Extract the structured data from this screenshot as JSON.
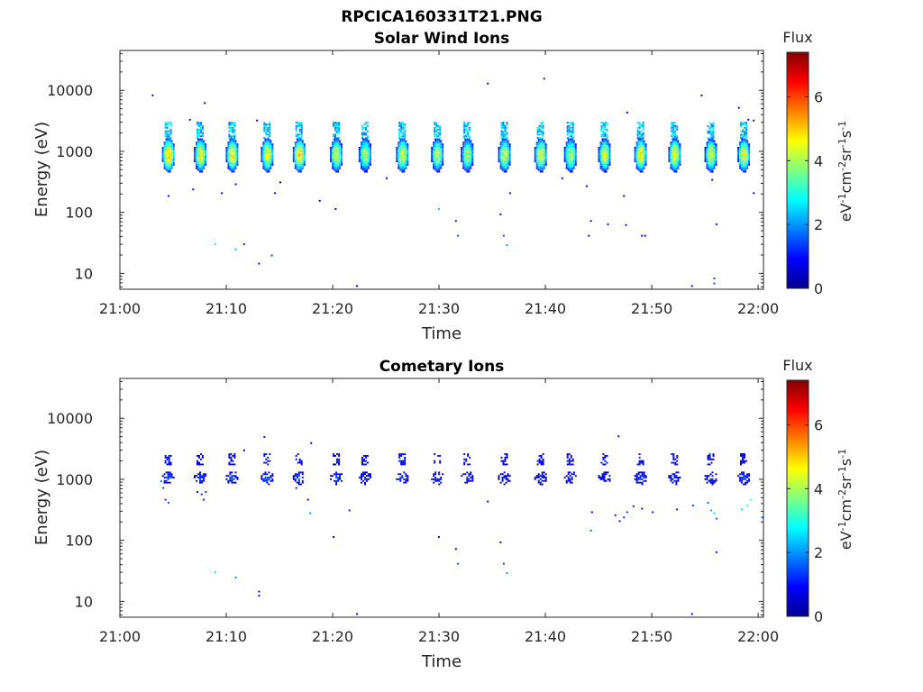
{
  "figure_title": "RPCICA160331T21.PNG",
  "colormap": [
    "#00008f",
    "#0000ff",
    "#0080ff",
    "#00ffff",
    "#80ff80",
    "#ffff00",
    "#ff8000",
    "#ff0000",
    "#800000"
  ],
  "chart_data": [
    {
      "type": "heatmap",
      "title": "Solar Wind Ions",
      "xlabel": "Time",
      "ylabel": "Energy (eV)",
      "x_ticks": [
        "21:00",
        "21:10",
        "21:20",
        "21:30",
        "21:40",
        "21:50",
        "22:00"
      ],
      "xlim_minutes": [
        0,
        60.5
      ],
      "y_scale": "log",
      "ylim": [
        5.5,
        45000
      ],
      "y_ticks": [
        10,
        100,
        1000,
        10000
      ],
      "y_tick_labels": [
        "10",
        "100",
        "1000",
        "10000"
      ],
      "colorbar": {
        "label": "Flux",
        "units": "eV-1cm-2sr-1s-1",
        "range": [
          0,
          7.4
        ],
        "ticks": [
          0,
          2,
          4,
          6
        ],
        "tick_labels": [
          "0",
          "2",
          "4",
          "6"
        ]
      },
      "bursts_minutes": [
        4.5,
        7.5,
        10.5,
        13.8,
        16.8,
        20.3,
        23.0,
        26.5,
        29.8,
        32.6,
        36.1,
        39.5,
        42.3,
        45.5,
        48.9,
        52.1,
        55.5,
        58.6
      ],
      "main_band_energy_eV": [
        450,
        1600
      ],
      "upper_band_energy_eV": [
        1600,
        3000
      ],
      "peak_flux": [
        5.0,
        4.5,
        4.6,
        4.4,
        4.8,
        4.2,
        4.0,
        4.3,
        4.0,
        3.8,
        4.2,
        4.3,
        4.0,
        4.2,
        4.6,
        4.5,
        4.3,
        4.5
      ],
      "scattered_points": [
        {
          "t": 3.0,
          "e": 8000,
          "v": 0.3
        },
        {
          "t": 7.9,
          "e": 6000,
          "v": 0.3
        },
        {
          "t": 6.5,
          "e": 3200,
          "v": 0.5
        },
        {
          "t": 12.8,
          "e": 3100,
          "v": 0.4
        },
        {
          "t": 34.5,
          "e": 12500,
          "v": 0.3
        },
        {
          "t": 39.8,
          "e": 15000,
          "v": 0.8
        },
        {
          "t": 47.6,
          "e": 4200,
          "v": 0.5
        },
        {
          "t": 54.6,
          "e": 8000,
          "v": 0.4
        },
        {
          "t": 58.1,
          "e": 5000,
          "v": 0.4
        },
        {
          "t": 59.0,
          "e": 3200,
          "v": 0.3
        },
        {
          "t": 59.5,
          "e": 3100,
          "v": 0.3
        },
        {
          "t": 4.5,
          "e": 180,
          "v": 0.6
        },
        {
          "t": 6.8,
          "e": 230,
          "v": 0.6
        },
        {
          "t": 9.5,
          "e": 200,
          "v": 0.5
        },
        {
          "t": 10.8,
          "e": 280,
          "v": 0.6
        },
        {
          "t": 15.0,
          "e": 300,
          "v": 0.5
        },
        {
          "t": 14.5,
          "e": 200,
          "v": 0.5
        },
        {
          "t": 18.7,
          "e": 150,
          "v": 0.4
        },
        {
          "t": 20.2,
          "e": 110,
          "v": 0.5
        },
        {
          "t": 25.0,
          "e": 350,
          "v": 0.4
        },
        {
          "t": 36.6,
          "e": 200,
          "v": 0.5
        },
        {
          "t": 41.5,
          "e": 350,
          "v": 0.5
        },
        {
          "t": 43.8,
          "e": 260,
          "v": 0.5
        },
        {
          "t": 44.2,
          "e": 70,
          "v": 0.6
        },
        {
          "t": 45.8,
          "e": 62,
          "v": 0.6
        },
        {
          "t": 47.3,
          "e": 180,
          "v": 0.6
        },
        {
          "t": 47.5,
          "e": 60,
          "v": 0.6
        },
        {
          "t": 55.6,
          "e": 330,
          "v": 0.6
        },
        {
          "t": 56.0,
          "e": 62,
          "v": 0.8
        },
        {
          "t": 59.5,
          "e": 200,
          "v": 0.5
        },
        {
          "t": 29.9,
          "e": 110,
          "v": 2.3
        },
        {
          "t": 31.5,
          "e": 70,
          "v": 0.8
        },
        {
          "t": 31.7,
          "e": 40,
          "v": 1.5
        },
        {
          "t": 35.7,
          "e": 90,
          "v": 0.7
        },
        {
          "t": 36.0,
          "e": 40,
          "v": 1.4
        },
        {
          "t": 36.3,
          "e": 28,
          "v": 2.0
        },
        {
          "t": 44.0,
          "e": 40,
          "v": 0.9
        },
        {
          "t": 49.0,
          "e": 40,
          "v": 0.9
        },
        {
          "t": 49.3,
          "e": 40,
          "v": 0.9
        },
        {
          "t": 8.9,
          "e": 29,
          "v": 2.7
        },
        {
          "t": 10.8,
          "e": 24,
          "v": 2.3
        },
        {
          "t": 11.6,
          "e": 29,
          "v": 1.1
        },
        {
          "t": 13.0,
          "e": 14,
          "v": 0.8
        },
        {
          "t": 14.2,
          "e": 19,
          "v": 1.4
        },
        {
          "t": 22.2,
          "e": 6,
          "v": 0.8
        },
        {
          "t": 53.7,
          "e": 6,
          "v": 0.8
        },
        {
          "t": 55.8,
          "e": 8,
          "v": 1.4
        },
        {
          "t": 55.8,
          "e": 6.6,
          "v": 1.4
        }
      ]
    },
    {
      "type": "heatmap",
      "title": "Cometary Ions",
      "xlabel": "Time",
      "ylabel": "Energy (eV)",
      "x_ticks": [
        "21:00",
        "21:10",
        "21:20",
        "21:30",
        "21:40",
        "21:50",
        "22:00"
      ],
      "xlim_minutes": [
        0,
        60.5
      ],
      "y_scale": "log",
      "ylim": [
        5.5,
        45000
      ],
      "y_ticks": [
        10,
        100,
        1000,
        10000
      ],
      "y_tick_labels": [
        "10",
        "100",
        "1000",
        "10000"
      ],
      "colorbar": {
        "label": "Flux",
        "units": "eV-1cm-2sr-1s-1",
        "range": [
          0,
          7.4
        ],
        "ticks": [
          0,
          2,
          4,
          6
        ],
        "tick_labels": [
          "0",
          "2",
          "4",
          "6"
        ]
      },
      "bursts_minutes": [
        4.5,
        7.5,
        10.5,
        13.8,
        16.8,
        20.3,
        23.0,
        26.5,
        29.8,
        32.6,
        36.1,
        39.5,
        42.3,
        45.5,
        48.9,
        52.1,
        55.5,
        58.6
      ],
      "main_band_energy_eV": [
        800,
        1300
      ],
      "upper_band_energy_eV": [
        1700,
        2600
      ],
      "peak_flux": [
        1.5,
        1.3,
        1.4,
        1.6,
        1.5,
        1.4,
        1.2,
        1.3,
        1.1,
        1.1,
        1.0,
        1.1,
        1.1,
        1.0,
        1.3,
        1.2,
        1.2,
        1.5
      ],
      "scattered_points": [
        {
          "t": 4.0,
          "e": 700,
          "v": 1.3
        },
        {
          "t": 3.8,
          "e": 900,
          "v": 1.6
        },
        {
          "t": 4.5,
          "e": 400,
          "v": 1.5
        },
        {
          "t": 4.2,
          "e": 450,
          "v": 1.3
        },
        {
          "t": 7.2,
          "e": 600,
          "v": 1.0
        },
        {
          "t": 7.6,
          "e": 550,
          "v": 1.2
        },
        {
          "t": 8.0,
          "e": 600,
          "v": 1.3
        },
        {
          "t": 7.8,
          "e": 450,
          "v": 0.8
        },
        {
          "t": 16.5,
          "e": 700,
          "v": 0.9
        },
        {
          "t": 17.6,
          "e": 450,
          "v": 0.8
        },
        {
          "t": 17.8,
          "e": 270,
          "v": 2.0
        },
        {
          "t": 17.9,
          "e": 3800,
          "v": 0.8
        },
        {
          "t": 13.5,
          "e": 4800,
          "v": 0.6
        },
        {
          "t": 46.8,
          "e": 4900,
          "v": 0.6
        },
        {
          "t": 20.0,
          "e": 110,
          "v": 0.6
        },
        {
          "t": 21.5,
          "e": 300,
          "v": 1.0
        },
        {
          "t": 29.9,
          "e": 110,
          "v": 0.6
        },
        {
          "t": 31.5,
          "e": 70,
          "v": 0.8
        },
        {
          "t": 31.7,
          "e": 40,
          "v": 1.5
        },
        {
          "t": 35.7,
          "e": 90,
          "v": 0.7
        },
        {
          "t": 36.0,
          "e": 40,
          "v": 1.4
        },
        {
          "t": 36.3,
          "e": 28,
          "v": 2.0
        },
        {
          "t": 8.9,
          "e": 29,
          "v": 2.7
        },
        {
          "t": 10.8,
          "e": 24,
          "v": 1.8
        },
        {
          "t": 13.0,
          "e": 14,
          "v": 0.8
        },
        {
          "t": 13.0,
          "e": 12,
          "v": 0.8
        },
        {
          "t": 22.2,
          "e": 6,
          "v": 0.8
        },
        {
          "t": 53.7,
          "e": 6,
          "v": 0.8
        },
        {
          "t": 56.0,
          "e": 62,
          "v": 0.8
        },
        {
          "t": 34.5,
          "e": 420,
          "v": 0.5
        },
        {
          "t": 44.2,
          "e": 140,
          "v": 1.5
        },
        {
          "t": 44.3,
          "e": 280,
          "v": 0.8
        },
        {
          "t": 46.5,
          "e": 250,
          "v": 0.9
        },
        {
          "t": 46.9,
          "e": 200,
          "v": 1.0
        },
        {
          "t": 47.3,
          "e": 230,
          "v": 1.3
        },
        {
          "t": 47.6,
          "e": 280,
          "v": 1.4
        },
        {
          "t": 48.2,
          "e": 350,
          "v": 1.0
        },
        {
          "t": 49.0,
          "e": 320,
          "v": 1.1
        },
        {
          "t": 50.0,
          "e": 280,
          "v": 1.1
        },
        {
          "t": 52.3,
          "e": 310,
          "v": 1.0
        },
        {
          "t": 53.8,
          "e": 360,
          "v": 1.3
        },
        {
          "t": 55.2,
          "e": 400,
          "v": 1.7
        },
        {
          "t": 55.5,
          "e": 300,
          "v": 2.2
        },
        {
          "t": 55.8,
          "e": 270,
          "v": 2.6
        },
        {
          "t": 56.0,
          "e": 220,
          "v": 1.6
        },
        {
          "t": 58.4,
          "e": 310,
          "v": 2.4
        },
        {
          "t": 58.9,
          "e": 360,
          "v": 3.0
        },
        {
          "t": 59.2,
          "e": 450,
          "v": 3.4
        },
        {
          "t": 60.3,
          "e": 230,
          "v": 1.6
        },
        {
          "t": 11.6,
          "e": 2900,
          "v": 0.5
        }
      ]
    }
  ]
}
